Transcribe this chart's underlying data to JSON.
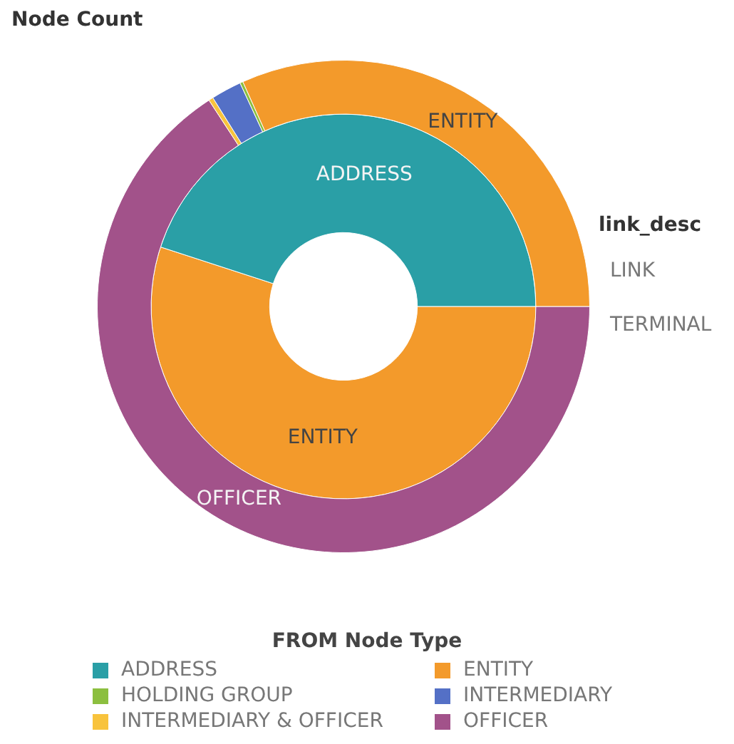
{
  "chart_data": {
    "type": "donut",
    "title": "Node Count",
    "legend_title": "FROM Node Type",
    "legend": "bottom",
    "categories": [
      "ADDRESS",
      "ENTITY",
      "HOLDING GROUP",
      "INTERMEDIARY",
      "INTERMEDIARY & OFFICER",
      "OFFICER"
    ],
    "colors": [
      "#2a9fa6",
      "#f39a2b",
      "#8cbf3f",
      "#5470c6",
      "#f8c33c",
      "#a2528a"
    ],
    "series": [
      {
        "values": [
          0,
          31.7,
          0.2,
          2,
          0.3,
          65.8
        ]
      },
      {
        "values": [
          45,
          55,
          0,
          0,
          0,
          0
        ]
      }
    ],
    "annotations": [
      "link_desc",
      "LINK",
      "TERMINAL"
    ]
  }
}
